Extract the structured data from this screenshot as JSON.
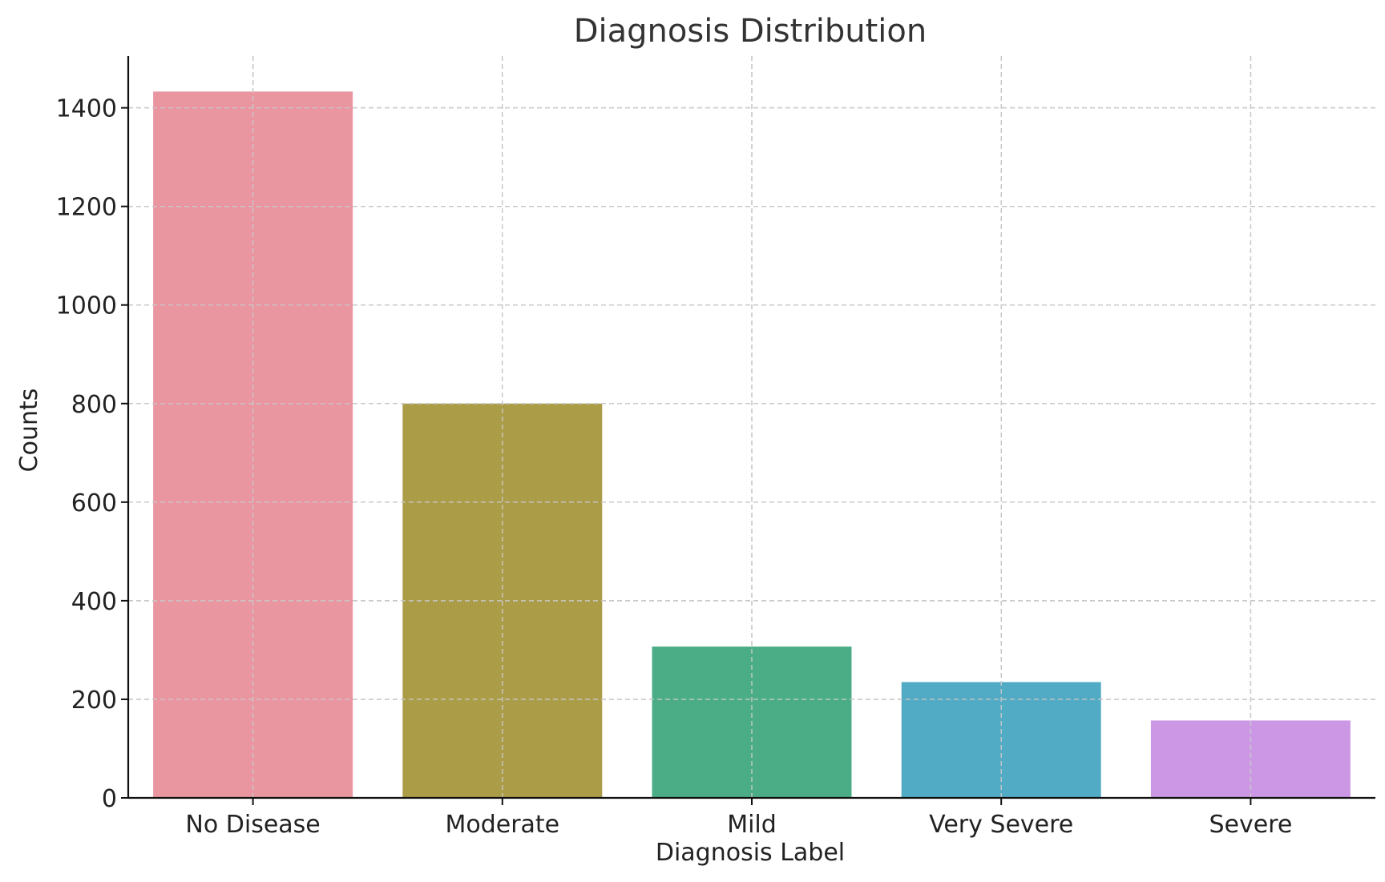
{
  "chart_data": {
    "type": "bar",
    "title": "Diagnosis Distribution",
    "xlabel": "Diagnosis Label",
    "ylabel": "Counts",
    "categories": [
      "No Disease",
      "Moderate",
      "Mild",
      "Very Severe",
      "Severe"
    ],
    "values": [
      1433,
      800,
      307,
      235,
      157
    ],
    "colors": [
      "#ea96a1",
      "#ab9c47",
      "#4aad85",
      "#52abc4",
      "#cc98e6"
    ],
    "yticks": [
      0,
      200,
      400,
      600,
      800,
      1000,
      1200,
      1400
    ],
    "ylim": [
      0,
      1505
    ],
    "grid": true,
    "legend": "none"
  }
}
